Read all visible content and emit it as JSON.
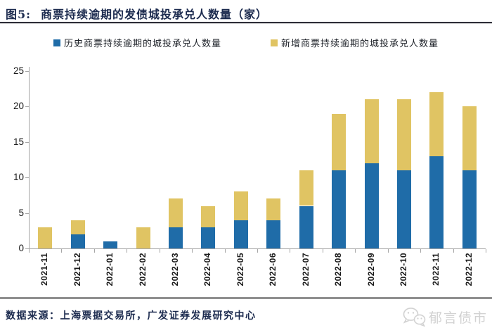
{
  "header": {
    "figure_label": "图5:",
    "title": "商票持续逾期的发债城投承兑人数量（家）"
  },
  "chart_data": {
    "type": "bar",
    "stacked": true,
    "title": "商票持续逾期的发债城投承兑人数量（家）",
    "xlabel": "",
    "ylabel": "",
    "categories": [
      "2021-11",
      "2021-12",
      "2022-01",
      "2022-02",
      "2022-03",
      "2022-04",
      "2022-05",
      "2022-06",
      "2022-07",
      "2022-08",
      "2022-09",
      "2022-10",
      "2022-11",
      "2022-12"
    ],
    "series": [
      {
        "name": "历史商票持续逾期的城投承兑人数量",
        "color": "#1f6ca8",
        "values": [
          0,
          2,
          1,
          0,
          3,
          3,
          4,
          4,
          6,
          11,
          12,
          11,
          13,
          11
        ]
      },
      {
        "name": "新增商票持续逾期的城投承兑人数量",
        "color": "#e0c463",
        "values": [
          3,
          2,
          0,
          3,
          4,
          3,
          4,
          3,
          5,
          8,
          9,
          10,
          9,
          9
        ]
      }
    ],
    "totals": [
      3,
      4,
      1,
      3,
      7,
      6,
      8,
      7,
      11,
      19,
      21,
      21,
      22,
      20
    ],
    "ylim": [
      0,
      25
    ],
    "yticks": [
      0,
      5,
      10,
      15,
      20,
      25
    ],
    "grid": false,
    "legend_position": "top"
  },
  "footer": {
    "source": "数据来源：上海票据交易所，广发证券发展研究中心",
    "watermark": "郁言债市",
    "watermark_icon": "wechat-icon"
  },
  "colors": {
    "series_blue": "#1f6ca8",
    "series_yellow": "#e0c463",
    "title_navy": "#1b2a4e",
    "axis_gray": "#a6a6a6",
    "watermark_gray": "#d2d2d2"
  }
}
